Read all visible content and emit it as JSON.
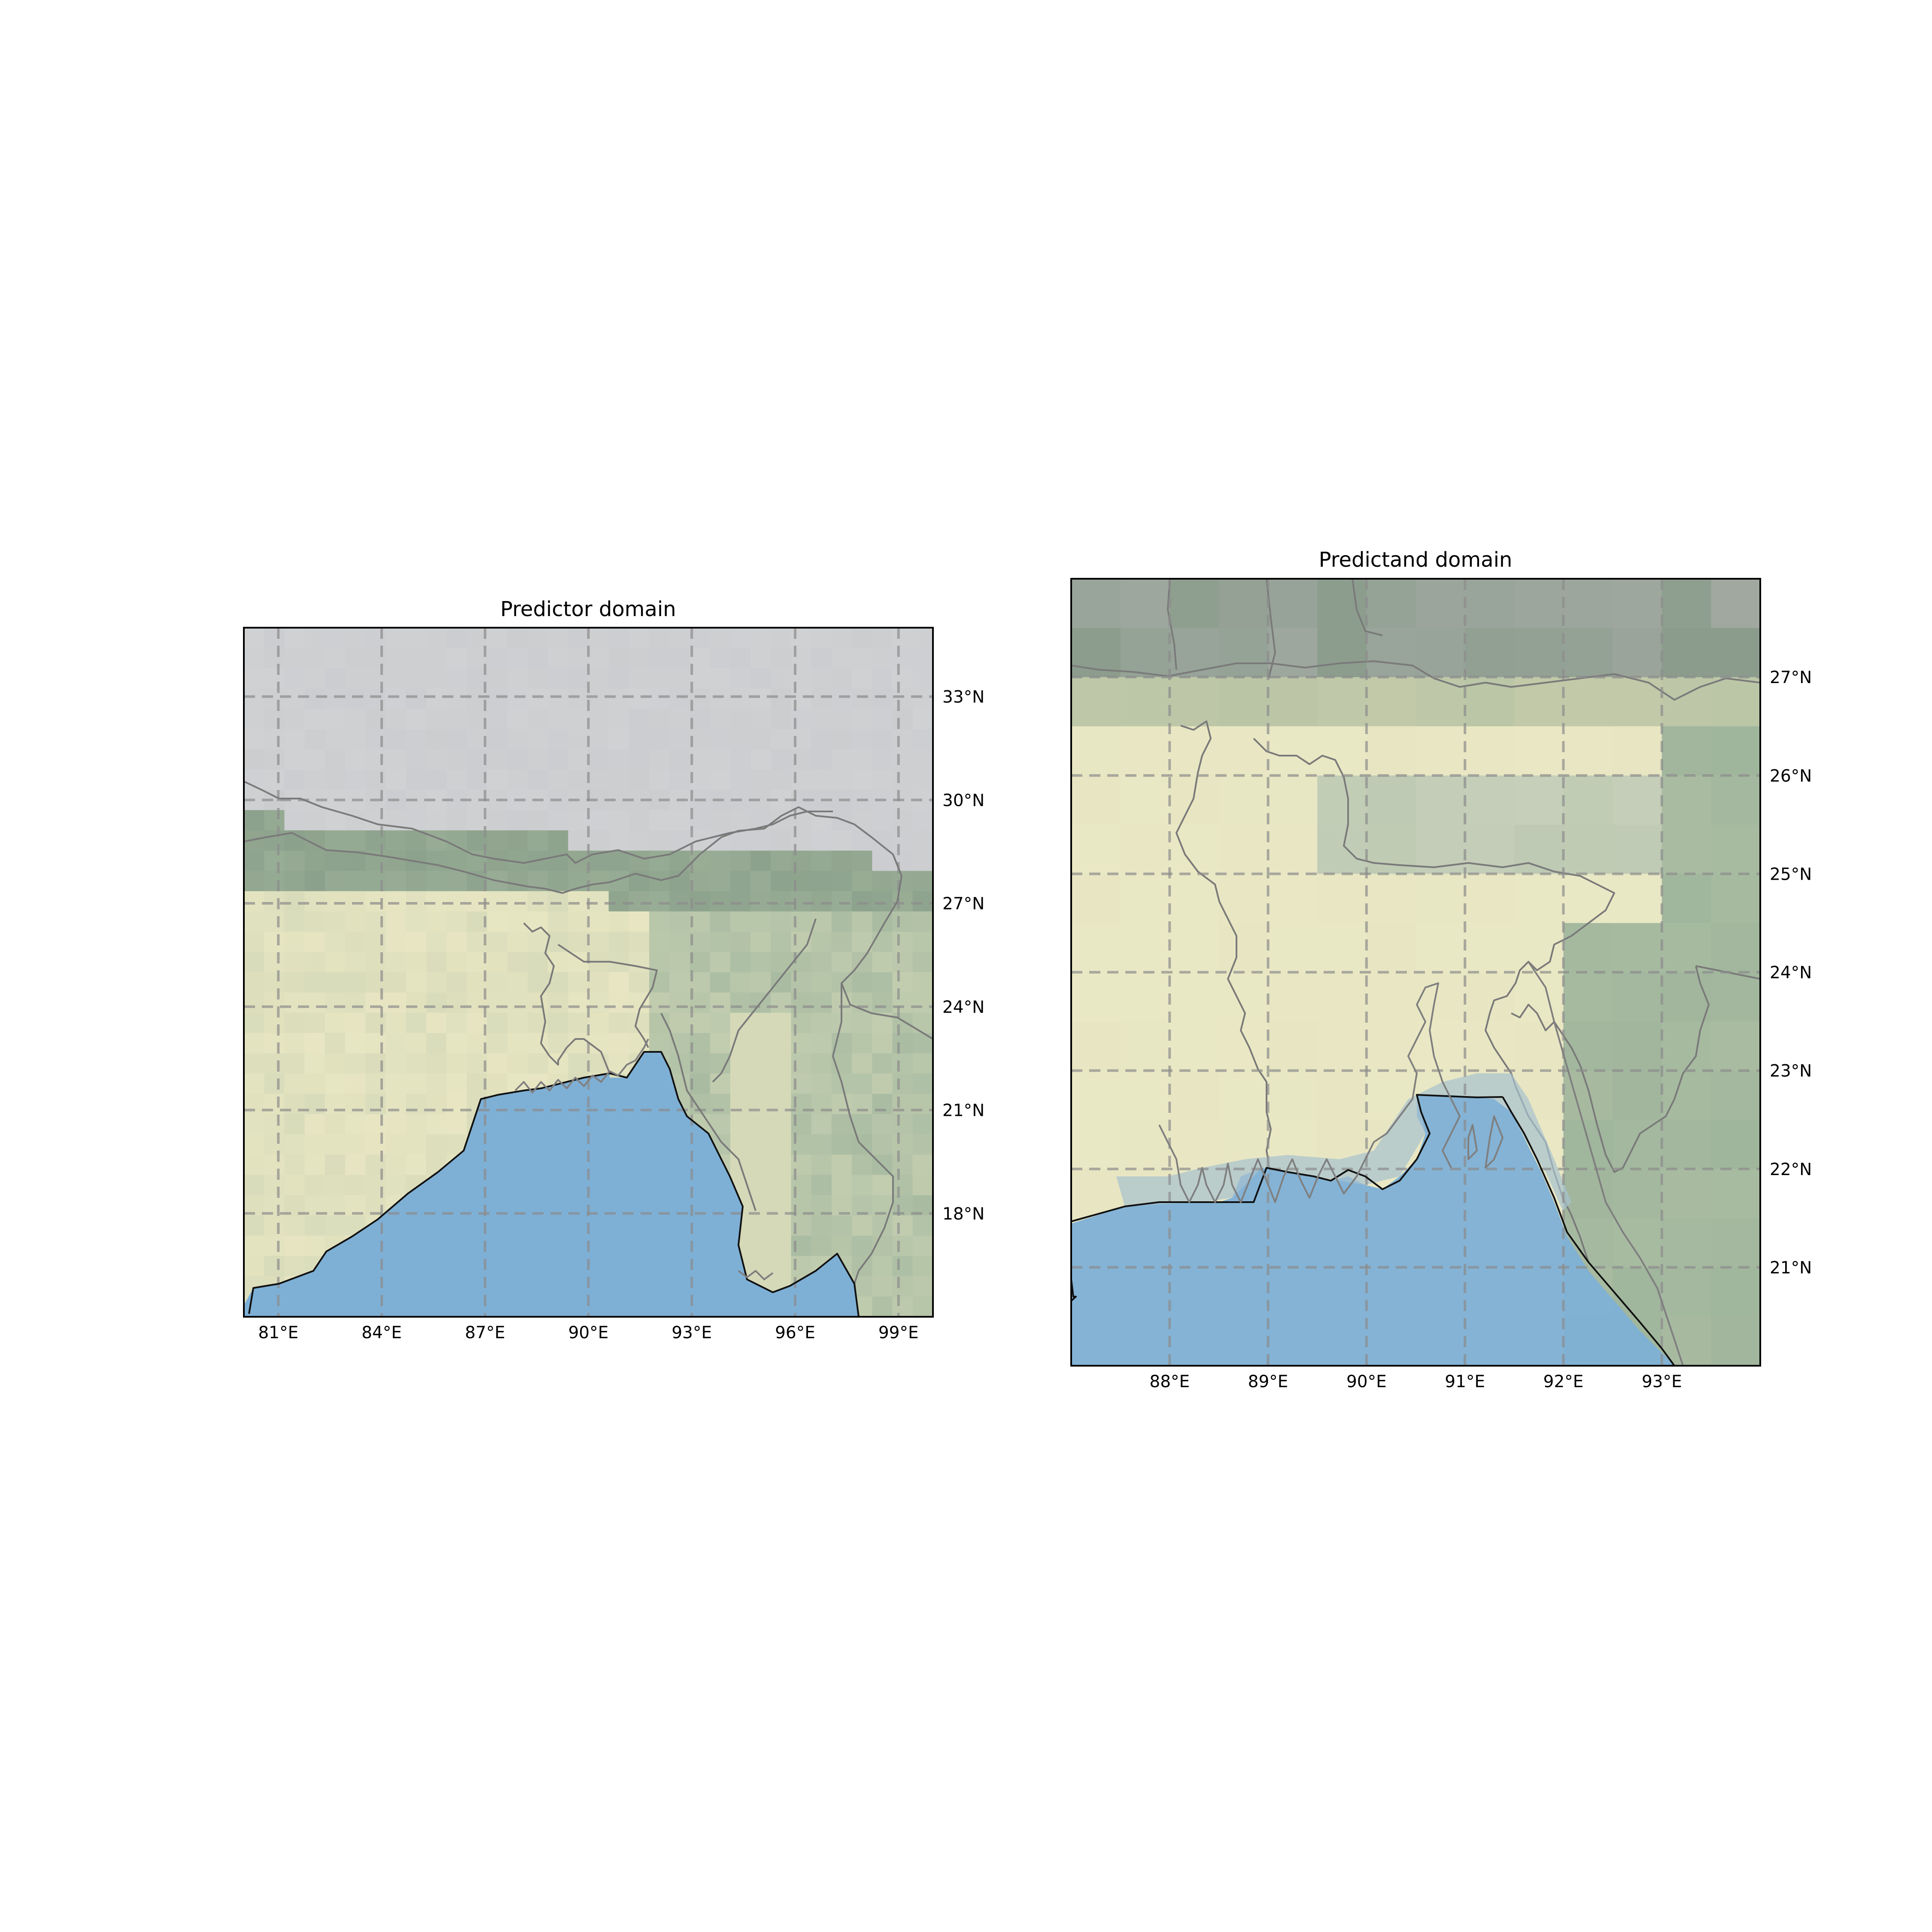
{
  "figure": {
    "panels": [
      {
        "id": "predictor",
        "title": "Predictor domain",
        "lon_range": [
          80,
          100
        ],
        "lat_range": [
          15,
          35
        ],
        "lon_ticks": [
          {
            "value": 81,
            "label": "81°E"
          },
          {
            "value": 84,
            "label": "84°E"
          },
          {
            "value": 87,
            "label": "87°E"
          },
          {
            "value": 90,
            "label": "90°E"
          },
          {
            "value": 93,
            "label": "93°E"
          },
          {
            "value": 96,
            "label": "96°E"
          },
          {
            "value": 99,
            "label": "99°E"
          }
        ],
        "lat_ticks": [
          {
            "value": 18,
            "label": "18°N"
          },
          {
            "value": 21,
            "label": "21°N"
          },
          {
            "value": 24,
            "label": "24°N"
          },
          {
            "value": 27,
            "label": "27°N"
          },
          {
            "value": 30,
            "label": "30°N"
          },
          {
            "value": 33,
            "label": "33°N"
          }
        ]
      },
      {
        "id": "predictand",
        "title": "Predictand domain",
        "lon_range": [
          87,
          94
        ],
        "lat_range": [
          20,
          28
        ],
        "lon_ticks": [
          {
            "value": 88,
            "label": "88°E"
          },
          {
            "value": 89,
            "label": "89°E"
          },
          {
            "value": 90,
            "label": "90°E"
          },
          {
            "value": 91,
            "label": "91°E"
          },
          {
            "value": 92,
            "label": "92°E"
          },
          {
            "value": 93,
            "label": "93°E"
          }
        ],
        "lat_ticks": [
          {
            "value": 21,
            "label": "21°N"
          },
          {
            "value": 22,
            "label": "22°N"
          },
          {
            "value": 23,
            "label": "23°N"
          },
          {
            "value": 24,
            "label": "24°N"
          },
          {
            "value": 25,
            "label": "25°N"
          },
          {
            "value": 26,
            "label": "26°N"
          },
          {
            "value": 27,
            "label": "27°N"
          }
        ]
      }
    ],
    "colors": {
      "ocean": "#7eb0d6",
      "plains": "#e8e6c2",
      "forest": "#a9bca2",
      "mountain": "#cfd1d3",
      "grid": "#8c8c8c",
      "border": "#7a7a7a",
      "coast": "#111111"
    }
  }
}
